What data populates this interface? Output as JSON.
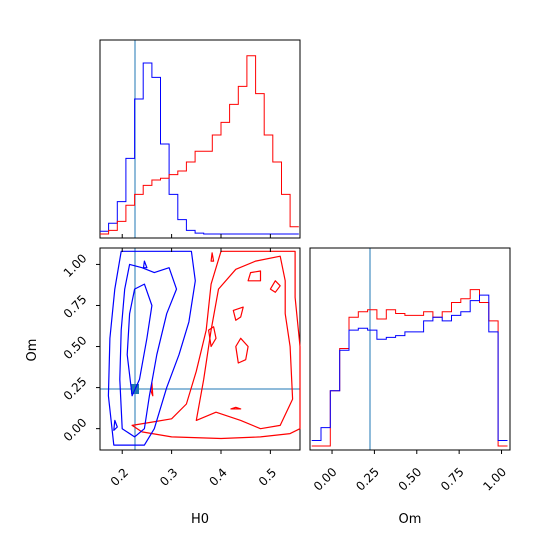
{
  "chart_data": {
    "type": "corner",
    "parameters": [
      "H0",
      "Om"
    ],
    "truth": {
      "H0": 0.228,
      "Om": 0.21
    },
    "colors": {
      "blue": "#0000ff",
      "red": "#ff0000",
      "truth": "#1f77b4"
    },
    "axes": {
      "H0": {
        "range": [
          0.155,
          0.56
        ],
        "ticks": [
          0.2,
          0.3,
          0.4,
          0.5
        ],
        "tick_labels": [
          "0.2",
          "0.3",
          "0.4",
          "0.5"
        ],
        "label": "H0"
      },
      "Om_y": {
        "range": [
          -0.13,
          1.1
        ],
        "ticks": [
          0.0,
          0.25,
          0.5,
          0.75,
          1.0
        ],
        "tick_labels": [
          "0.00",
          "0.25",
          "0.50",
          "0.75",
          "1.00"
        ],
        "label": "Om"
      },
      "Om_x": {
        "range": [
          -0.13,
          1.05
        ],
        "ticks": [
          0.0,
          0.25,
          0.5,
          0.75,
          1.0
        ],
        "tick_labels": [
          "0.00",
          "0.25",
          "0.50",
          "0.75",
          "1.00"
        ],
        "label": "Om"
      }
    },
    "hist_H0": {
      "bins": [
        0.155,
        0.1725,
        0.19,
        0.2075,
        0.225,
        0.2425,
        0.26,
        0.2775,
        0.295,
        0.3125,
        0.33,
        0.3475,
        0.365,
        0.3825,
        0.4,
        0.4175,
        0.435,
        0.4525,
        0.47,
        0.4875,
        0.505,
        0.5225,
        0.54,
        0.5575
      ],
      "blue": [
        0.015,
        0.06,
        0.18,
        0.42,
        0.75,
        0.95,
        0.87,
        0.5,
        0.22,
        0.08,
        0.02,
        0.005,
        0,
        0,
        0,
        0,
        0,
        0,
        0,
        0,
        0,
        0,
        0
      ],
      "red": [
        0,
        0.02,
        0.07,
        0.16,
        0.22,
        0.27,
        0.3,
        0.31,
        0.33,
        0.35,
        0.4,
        0.46,
        0.46,
        0.55,
        0.62,
        0.72,
        0.82,
        0.99,
        0.78,
        0.55,
        0.4,
        0.22,
        0.04
      ]
    },
    "hist_Om": {
      "bins": [
        -0.12,
        -0.065,
        -0.01,
        0.045,
        0.1,
        0.155,
        0.21,
        0.265,
        0.32,
        0.375,
        0.43,
        0.485,
        0.54,
        0.595,
        0.65,
        0.705,
        0.76,
        0.815,
        0.87,
        0.925,
        0.98,
        1.035
      ],
      "blue": [
        0.03,
        0.1,
        0.3,
        0.52,
        0.63,
        0.64,
        0.63,
        0.58,
        0.59,
        0.6,
        0.62,
        0.62,
        0.68,
        0.7,
        0.68,
        0.71,
        0.73,
        0.79,
        0.82,
        0.62,
        0.03
      ],
      "red": [
        0,
        0,
        0.3,
        0.53,
        0.7,
        0.73,
        0.74,
        0.69,
        0.74,
        0.72,
        0.71,
        0.71,
        0.73,
        0.7,
        0.73,
        0.78,
        0.8,
        0.85,
        0.78,
        0.68,
        0
      ]
    },
    "contours": {
      "blue": [
        [
          [
            0.183,
            -0.1
          ],
          [
            0.172,
            0.2
          ],
          [
            0.175,
            0.55
          ],
          [
            0.185,
            0.85
          ],
          [
            0.198,
            1.08
          ],
          [
            0.24,
            1.08
          ],
          [
            0.3,
            1.08
          ],
          [
            0.34,
            1.08
          ],
          [
            0.348,
            0.9
          ],
          [
            0.335,
            0.65
          ],
          [
            0.315,
            0.45
          ],
          [
            0.29,
            0.25
          ],
          [
            0.265,
            0.0
          ],
          [
            0.245,
            -0.1
          ]
        ],
        [
          [
            0.2,
            0.0
          ],
          [
            0.195,
            0.3
          ],
          [
            0.198,
            0.6
          ],
          [
            0.205,
            0.85
          ],
          [
            0.215,
            1.0
          ],
          [
            0.24,
            0.98
          ],
          [
            0.265,
            0.95
          ],
          [
            0.295,
            0.98
          ],
          [
            0.31,
            0.85
          ],
          [
            0.29,
            0.7
          ],
          [
            0.27,
            0.45
          ],
          [
            0.255,
            0.2
          ],
          [
            0.245,
            0.0
          ],
          [
            0.225,
            -0.05
          ]
        ],
        [
          [
            0.22,
            0.2
          ],
          [
            0.21,
            0.45
          ],
          [
            0.215,
            0.7
          ],
          [
            0.225,
            0.85
          ],
          [
            0.245,
            0.88
          ],
          [
            0.26,
            0.75
          ],
          [
            0.25,
            0.55
          ],
          [
            0.235,
            0.3
          ]
        ],
        [
          [
            0.185,
            0.05
          ],
          [
            0.183,
            -0.01
          ],
          [
            0.19,
            0.01
          ]
        ],
        [
          [
            0.243,
            0.98
          ],
          [
            0.245,
            1.02
          ],
          [
            0.25,
            0.98
          ]
        ]
      ],
      "red": [
        [
          [
            0.22,
            0.02
          ],
          [
            0.24,
            -0.02
          ],
          [
            0.3,
            -0.05
          ],
          [
            0.4,
            -0.06
          ],
          [
            0.48,
            -0.05
          ],
          [
            0.54,
            -0.03
          ],
          [
            0.56,
            0.0
          ],
          [
            0.56,
            0.5
          ],
          [
            0.55,
            0.8
          ],
          [
            0.55,
            1.08
          ],
          [
            0.5,
            1.08
          ],
          [
            0.45,
            1.08
          ],
          [
            0.4,
            1.08
          ],
          [
            0.38,
            0.88
          ],
          [
            0.37,
            0.6
          ],
          [
            0.35,
            0.35
          ],
          [
            0.33,
            0.15
          ],
          [
            0.3,
            0.06
          ],
          [
            0.26,
            0.04
          ]
        ],
        [
          [
            0.35,
            0.05
          ],
          [
            0.39,
            0.1
          ],
          [
            0.44,
            0.05
          ],
          [
            0.48,
            0.0
          ],
          [
            0.52,
            0.02
          ],
          [
            0.545,
            0.18
          ],
          [
            0.54,
            0.5
          ],
          [
            0.53,
            0.7
          ],
          [
            0.53,
            0.9
          ],
          [
            0.52,
            1.05
          ],
          [
            0.47,
            1.02
          ],
          [
            0.43,
            0.97
          ],
          [
            0.395,
            0.85
          ],
          [
            0.38,
            0.6
          ],
          [
            0.365,
            0.3
          ]
        ],
        [
          [
            0.435,
            0.4
          ],
          [
            0.43,
            0.5
          ],
          [
            0.44,
            0.55
          ],
          [
            0.455,
            0.5
          ],
          [
            0.45,
            0.42
          ]
        ],
        [
          [
            0.5,
            0.85
          ],
          [
            0.51,
            0.9
          ],
          [
            0.52,
            0.87
          ],
          [
            0.51,
            0.83
          ]
        ],
        [
          [
            0.455,
            0.9
          ],
          [
            0.46,
            0.95
          ],
          [
            0.48,
            0.96
          ],
          [
            0.48,
            0.9
          ]
        ],
        [
          [
            0.43,
            0.66
          ],
          [
            0.425,
            0.72
          ],
          [
            0.445,
            0.74
          ],
          [
            0.44,
            0.68
          ]
        ],
        [
          [
            0.38,
            0.5
          ],
          [
            0.375,
            0.6
          ],
          [
            0.385,
            0.62
          ],
          [
            0.39,
            0.55
          ]
        ],
        [
          [
            0.42,
            0.12
          ],
          [
            0.43,
            0.13
          ],
          [
            0.44,
            0.12
          ]
        ],
        [
          [
            0.38,
            1.02
          ],
          [
            0.382,
            1.07
          ],
          [
            0.385,
            1.02
          ]
        ],
        [
          [
            0.26,
            0.28
          ],
          [
            0.258,
            0.23
          ],
          [
            0.262,
            0.2
          ]
        ]
      ]
    }
  }
}
